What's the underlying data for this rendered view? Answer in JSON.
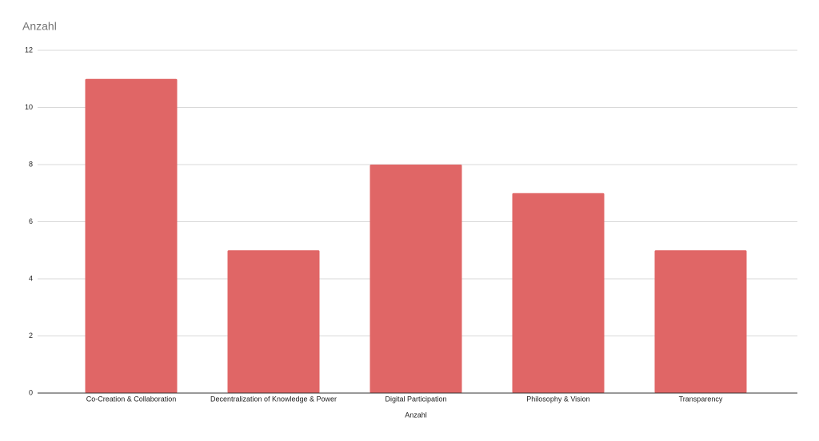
{
  "chart_data": {
    "type": "bar",
    "title": "Anzahl",
    "x_label": "Anzahl",
    "categories": [
      "Co-Creation & Collaboration",
      "Decentralization of Knowledge & Power",
      "Digital Participation",
      "Philosophy & Vision",
      "Transparency"
    ],
    "values": [
      11,
      5,
      8,
      7,
      5
    ],
    "color": "#e06666",
    "ylim": [
      0,
      12
    ],
    "yticks": [
      0,
      2,
      4,
      6,
      8,
      10,
      12
    ],
    "grid": true
  }
}
